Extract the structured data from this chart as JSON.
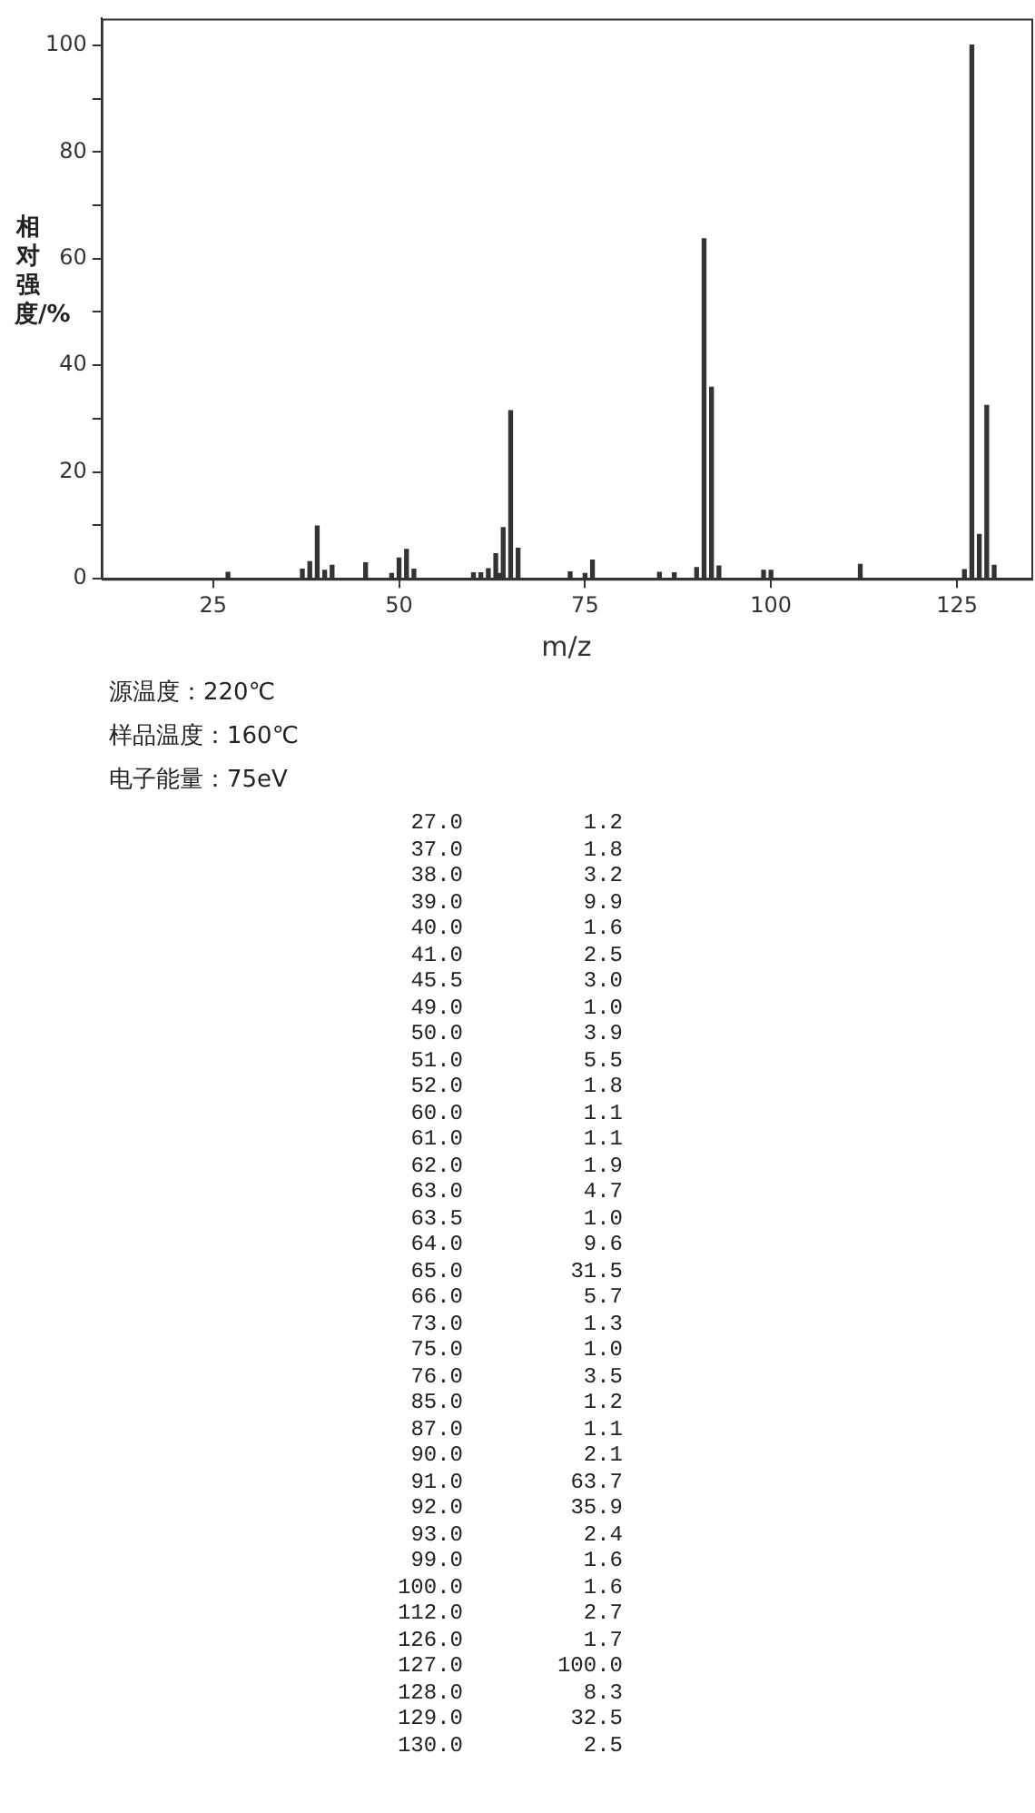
{
  "chart_data": [
    {
      "type": "bar",
      "xlabel": "m/z",
      "ylabel": "相对强度/%",
      "annotations": [
        "源温度：220℃",
        "样品温度：160℃",
        "电子能量：75eV"
      ],
      "x": [
        27,
        37,
        38,
        39,
        40,
        41,
        45.5,
        49,
        50,
        51,
        52,
        60,
        61,
        62,
        63,
        63.5,
        64,
        65,
        66,
        73,
        75,
        76,
        85,
        87,
        90,
        91,
        92,
        93,
        99,
        100,
        112,
        126,
        127,
        128,
        129,
        130
      ],
      "values": [
        1.2,
        1.8,
        3.2,
        9.9,
        1.6,
        2.5,
        3.0,
        1.0,
        3.9,
        5.5,
        1.8,
        1.1,
        1.1,
        1.9,
        4.7,
        1.0,
        9.6,
        31.5,
        5.7,
        1.3,
        1.0,
        3.5,
        1.2,
        1.1,
        2.1,
        63.7,
        35.9,
        2.4,
        1.6,
        1.6,
        2.7,
        1.7,
        100.0,
        8.3,
        32.5,
        2.5
      ],
      "color": "#333333",
      "xlim": [
        10,
        135
      ],
      "xticks": [
        25,
        50,
        75,
        100,
        125
      ],
      "ylim": [
        0,
        105
      ],
      "yticks": [
        0,
        {
          "value": 10,
          "label": null
        },
        20,
        {
          "value": 30,
          "label": null
        },
        40,
        {
          "value": 50,
          "label": null
        },
        60,
        {
          "value": 70,
          "label": null
        },
        80,
        {
          "value": 90,
          "label": null
        },
        100
      ],
      "grid": false,
      "legend": false
    },
    {
      "type": "other",
      "annotations": [
        "27.0",
        "1.2",
        "37.0",
        "1.8",
        "38.0",
        "3.2",
        "39.0",
        "9.9",
        "40.0",
        "1.6",
        "41.0",
        "2.5",
        "45.5",
        "3.0",
        "49.0",
        "1.0",
        "50.0",
        "3.9",
        "51.0",
        "5.5",
        "52.0",
        "1.8",
        "60.0",
        "1.1",
        "61.0",
        "1.1",
        "62.0",
        "1.9",
        "63.0",
        "4.7",
        "63.5",
        "1.0",
        "64.0",
        "9.6",
        "65.0",
        "31.5",
        "66.0",
        "5.7",
        "73.0",
        "1.3",
        "75.0",
        "1.0",
        "76.0",
        "3.5",
        "85.0",
        "1.2",
        "87.0",
        "1.1",
        "90.0",
        "2.1",
        "91.0",
        "63.7",
        "92.0",
        "35.9",
        "93.0",
        "2.4",
        "99.0",
        "1.6",
        "100.0",
        "1.6",
        "112.0",
        "2.7",
        "126.0",
        "1.7",
        "127.0",
        "100.0",
        "128.0",
        "8.3",
        "129.0",
        "32.5",
        "130.0",
        "2.5"
      ]
    }
  ]
}
